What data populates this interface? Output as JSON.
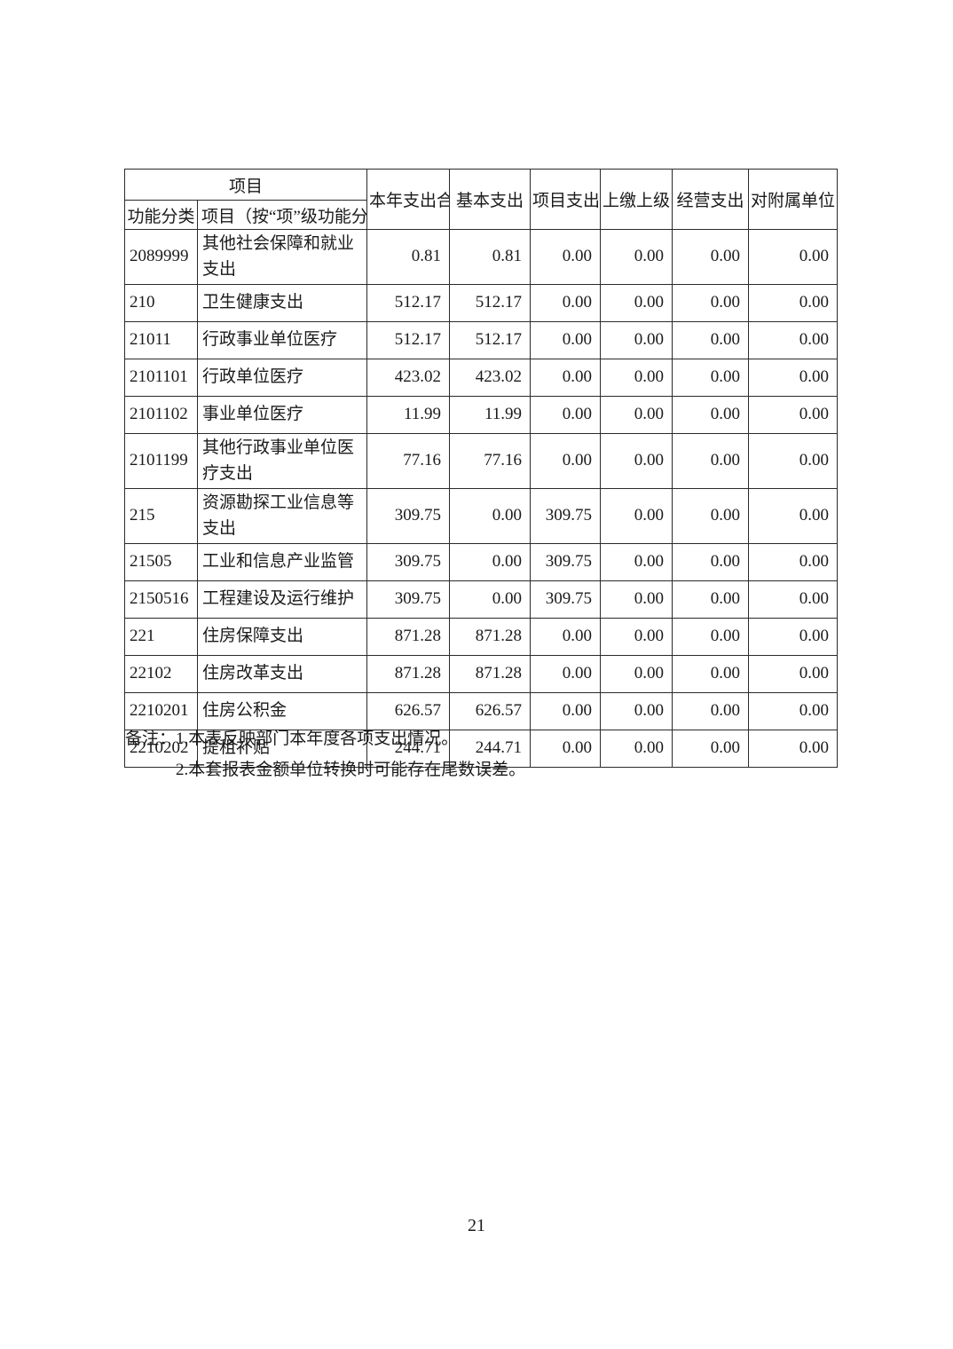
{
  "page": {
    "number": "21"
  },
  "table": {
    "header": {
      "group_label": "项目",
      "col_function_class": "功能分类",
      "col_item_by_level": "项目（按“项”级功能分类",
      "amount_columns": [
        "本年支出合",
        "基本支出",
        "项目支出",
        "上缴上级",
        "经营支出",
        "对附属单位"
      ]
    },
    "rows": [
      {
        "code": "2089999",
        "name": "其他社会保障和就业支出",
        "values": [
          "0.81",
          "0.81",
          "0.00",
          "0.00",
          "0.00",
          "0.00"
        ]
      },
      {
        "code": "210",
        "name": "卫生健康支出",
        "values": [
          "512.17",
          "512.17",
          "0.00",
          "0.00",
          "0.00",
          "0.00"
        ]
      },
      {
        "code": "21011",
        "name": "行政事业单位医疗",
        "values": [
          "512.17",
          "512.17",
          "0.00",
          "0.00",
          "0.00",
          "0.00"
        ]
      },
      {
        "code": "2101101",
        "name": "行政单位医疗",
        "values": [
          "423.02",
          "423.02",
          "0.00",
          "0.00",
          "0.00",
          "0.00"
        ]
      },
      {
        "code": "2101102",
        "name": "事业单位医疗",
        "values": [
          "11.99",
          "11.99",
          "0.00",
          "0.00",
          "0.00",
          "0.00"
        ]
      },
      {
        "code": "2101199",
        "name": "其他行政事业单位医疗支出",
        "values": [
          "77.16",
          "77.16",
          "0.00",
          "0.00",
          "0.00",
          "0.00"
        ]
      },
      {
        "code": "215",
        "name": "资源勘探工业信息等支出",
        "values": [
          "309.75",
          "0.00",
          "309.75",
          "0.00",
          "0.00",
          "0.00"
        ]
      },
      {
        "code": "21505",
        "name": "工业和信息产业监管",
        "values": [
          "309.75",
          "0.00",
          "309.75",
          "0.00",
          "0.00",
          "0.00"
        ]
      },
      {
        "code": "2150516",
        "name": "工程建设及运行维护",
        "values": [
          "309.75",
          "0.00",
          "309.75",
          "0.00",
          "0.00",
          "0.00"
        ]
      },
      {
        "code": "221",
        "name": "住房保障支出",
        "values": [
          "871.28",
          "871.28",
          "0.00",
          "0.00",
          "0.00",
          "0.00"
        ]
      },
      {
        "code": "22102",
        "name": "住房改革支出",
        "values": [
          "871.28",
          "871.28",
          "0.00",
          "0.00",
          "0.00",
          "0.00"
        ]
      },
      {
        "code": "2210201",
        "name": "住房公积金",
        "values": [
          "626.57",
          "626.57",
          "0.00",
          "0.00",
          "0.00",
          "0.00"
        ]
      },
      {
        "code": "2210202",
        "name": "提租补贴",
        "values": [
          "244.71",
          "244.71",
          "0.00",
          "0.00",
          "0.00",
          "0.00"
        ]
      }
    ]
  },
  "notes": {
    "label": "备注：",
    "items": [
      "1.本表反映部门本年度各项支出情况。",
      "2.本套报表金额单位转换时可能存在尾数误差。"
    ]
  },
  "colors": {
    "background": "#ffffff",
    "text": "#1a1a1a",
    "border": "#2a2a2a"
  }
}
